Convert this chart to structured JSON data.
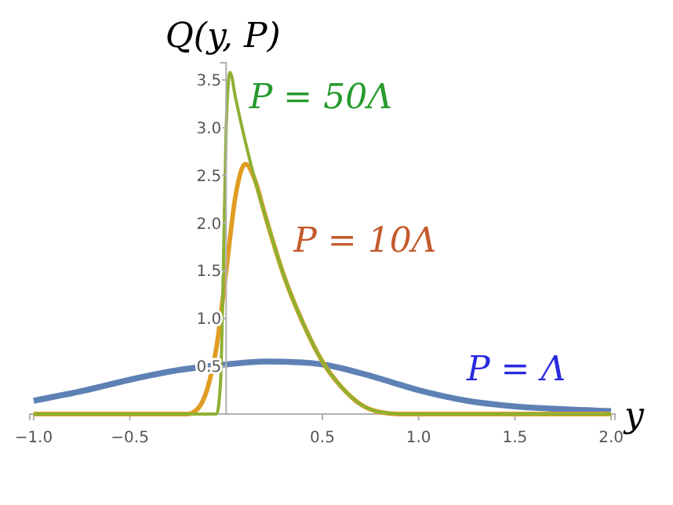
{
  "chart_data": {
    "type": "line",
    "xlabel": "y",
    "ylabel": "Q(y, P)",
    "xlim": [
      -1.02,
      2.02
    ],
    "ylim": [
      0,
      3.68
    ],
    "xticks": [
      {
        "value": -1,
        "label": "−1.0"
      },
      {
        "value": -0.5,
        "label": "−0.5"
      },
      {
        "value": 0.5,
        "label": "0.5"
      },
      {
        "value": 1,
        "label": "1.0"
      },
      {
        "value": 1.5,
        "label": "1.5"
      },
      {
        "value": 2,
        "label": "2.0"
      }
    ],
    "yticks": [
      0.5,
      {
        "value": 1,
        "label": "1.0"
      },
      1.5,
      {
        "value": 2,
        "label": "2.0"
      },
      2.5,
      {
        "value": 3,
        "label": "3.0"
      },
      3.5
    ],
    "grid": false,
    "legend": false,
    "marker": "none",
    "line_style": "solid",
    "series": [
      {
        "name": "P = Λ",
        "color": "#5e81b5",
        "x": [
          -1,
          -0.75,
          -0.5,
          -0.25,
          0,
          0.2,
          0.4,
          0.5,
          0.75,
          1,
          1.25,
          1.5,
          1.75,
          2
        ],
        "values": [
          0.14,
          0.24,
          0.36,
          0.46,
          0.52,
          0.55,
          0.54,
          0.52,
          0.4,
          0.25,
          0.14,
          0.08,
          0.05,
          0.03
        ]
      },
      {
        "name": "P = 10Λ",
        "color": "#e19c24",
        "x": [
          -1,
          -0.2,
          -0.15,
          -0.1,
          -0.05,
          0,
          0.05,
          0.1,
          0.15,
          0.2,
          0.3,
          0.4,
          0.5,
          0.6,
          0.7,
          0.8,
          0.9,
          2
        ],
        "values": [
          0,
          0,
          0.05,
          0.25,
          0.7,
          1.5,
          2.3,
          2.62,
          2.45,
          2.1,
          1.45,
          0.95,
          0.55,
          0.28,
          0.1,
          0.02,
          0,
          0
        ]
      },
      {
        "name": "P = 50Λ",
        "color": "#8fb032",
        "x": [
          -1,
          -0.05,
          -0.03,
          -0.01,
          0,
          0.02,
          0.05,
          0.1,
          0.15,
          0.2,
          0.3,
          0.4,
          0.5,
          0.6,
          0.7,
          0.8,
          0.9,
          2
        ],
        "values": [
          0,
          0,
          0.3,
          2,
          3,
          3.58,
          3.3,
          2.85,
          2.45,
          2.1,
          1.45,
          0.95,
          0.55,
          0.28,
          0.1,
          0.02,
          0,
          0
        ]
      }
    ]
  }
}
